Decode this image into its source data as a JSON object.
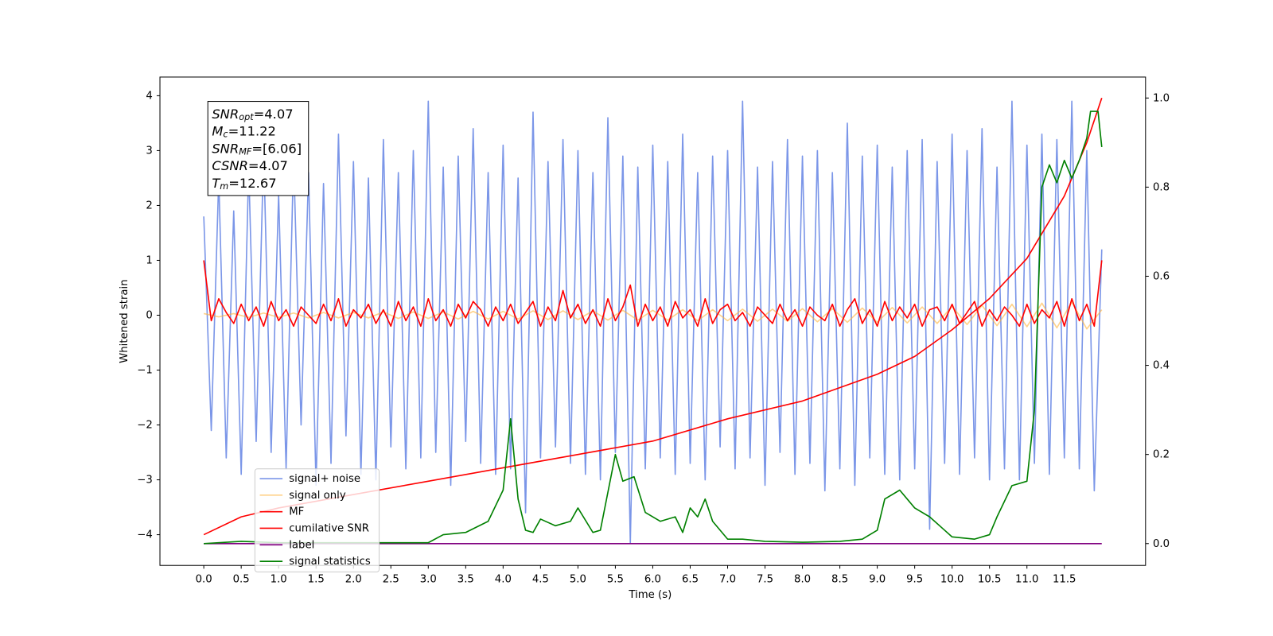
{
  "chart_data": {
    "type": "line",
    "xlabel": "Time (s)",
    "ylabel": "Whitened strain",
    "xlim": [
      -0.586,
      12.585
    ],
    "ylim": [
      -4.56,
      4.34
    ],
    "y2lim": [
      -0.049,
      1.047
    ],
    "xticks": [
      {
        "value": 0,
        "label": "0.0"
      },
      {
        "value": 0.5,
        "label": "0.5"
      },
      {
        "value": 1,
        "label": "1.0"
      },
      {
        "value": 1.5,
        "label": "1.5"
      },
      {
        "value": 2,
        "label": "2.0"
      },
      {
        "value": 2.5,
        "label": "2.5"
      },
      {
        "value": 3,
        "label": "3.0"
      },
      {
        "value": 3.5,
        "label": "3.5"
      },
      {
        "value": 4,
        "label": "4.0"
      },
      {
        "value": 4.5,
        "label": "4.5"
      },
      {
        "value": 5,
        "label": "5.0"
      },
      {
        "value": 5.5,
        "label": "5.5"
      },
      {
        "value": 6,
        "label": "6.0"
      },
      {
        "value": 6.5,
        "label": "6.5"
      },
      {
        "value": 7,
        "label": "7.0"
      },
      {
        "value": 7.5,
        "label": "7.5"
      },
      {
        "value": 8,
        "label": "8.0"
      },
      {
        "value": 8.5,
        "label": "8.5"
      },
      {
        "value": 9,
        "label": "9.0"
      },
      {
        "value": 9.5,
        "label": "9.5"
      },
      {
        "value": 10,
        "label": "10.0"
      },
      {
        "value": 10.5,
        "label": "10.5"
      },
      {
        "value": 11,
        "label": "11.0"
      },
      {
        "value": 11.5,
        "label": "11.5"
      }
    ],
    "yticks": [
      {
        "value": -4,
        "label": "−4"
      },
      {
        "value": -3,
        "label": "−3"
      },
      {
        "value": -2,
        "label": "−2"
      },
      {
        "value": -1,
        "label": "−1"
      },
      0,
      1,
      2,
      3,
      4
    ],
    "y2ticks": [
      {
        "value": 0,
        "label": "0.0"
      },
      {
        "value": 0.2,
        "label": "0.2"
      },
      {
        "value": 0.4,
        "label": "0.4"
      },
      {
        "value": 0.6,
        "label": "0.6"
      },
      {
        "value": 0.8,
        "label": "0.8"
      },
      {
        "value": 1,
        "label": "1.0"
      }
    ],
    "legend": "lower left",
    "annotations": [
      {
        "name": "SNR",
        "sub": "opt",
        "text": "=4.07"
      },
      {
        "name": "M",
        "sub": "c",
        "text": "=11.22"
      },
      {
        "name": "SNR",
        "sub": "MF",
        "text": "=[6.06]"
      },
      {
        "name": "CSNR",
        "text": "=4.07"
      },
      {
        "name": "T",
        "sub": "m",
        "text": "=12.67"
      }
    ],
    "series": [
      {
        "name": "signal+ noise",
        "color": "#7b96e8",
        "x": [
          0,
          0.1,
          0.2,
          0.3,
          0.4,
          0.5,
          0.6,
          0.7,
          0.8,
          0.9,
          1,
          1.1,
          1.2,
          1.3,
          1.4,
          1.5,
          1.6,
          1.7,
          1.8,
          1.9,
          2,
          2.1,
          2.2,
          2.3,
          2.4,
          2.5,
          2.6,
          2.7,
          2.8,
          2.9,
          3,
          3.1,
          3.2,
          3.3,
          3.4,
          3.5,
          3.6,
          3.7,
          3.8,
          3.9,
          4,
          4.1,
          4.2,
          4.3,
          4.4,
          4.5,
          4.6,
          4.7,
          4.8,
          4.9,
          5,
          5.1,
          5.2,
          5.3,
          5.4,
          5.5,
          5.6,
          5.7,
          5.8,
          5.9,
          6,
          6.1,
          6.2,
          6.3,
          6.4,
          6.5,
          6.6,
          6.7,
          6.8,
          6.9,
          7,
          7.1,
          7.2,
          7.3,
          7.4,
          7.5,
          7.6,
          7.7,
          7.8,
          7.9,
          8,
          8.1,
          8.2,
          8.3,
          8.4,
          8.5,
          8.6,
          8.7,
          8.8,
          8.9,
          9,
          9.1,
          9.2,
          9.3,
          9.4,
          9.5,
          9.6,
          9.7,
          9.8,
          9.9,
          10,
          10.1,
          10.2,
          10.3,
          10.4,
          10.5,
          10.6,
          10.7,
          10.8,
          10.9,
          11,
          11.1,
          11.2,
          11.3,
          11.4,
          11.5,
          11.6,
          11.7,
          11.8,
          11.9,
          12
        ],
        "values": [
          1.8,
          -2.1,
          2.5,
          -2.6,
          1.9,
          -2.9,
          2.7,
          -2.3,
          3.0,
          -2.5,
          2.2,
          -2.8,
          2.9,
          -2.0,
          2.6,
          -3.1,
          2.4,
          -2.7,
          3.3,
          -2.2,
          2.8,
          -2.9,
          2.5,
          -3.0,
          3.2,
          -2.4,
          2.6,
          -2.8,
          3.0,
          -2.6,
          3.9,
          -2.5,
          2.7,
          -3.1,
          2.9,
          -2.3,
          3.4,
          -2.7,
          2.6,
          -2.9,
          3.1,
          -2.8,
          2.5,
          -3.6,
          3.7,
          -2.6,
          2.8,
          -2.4,
          3.2,
          -2.7,
          3.0,
          -2.9,
          2.6,
          -3.0,
          3.6,
          -2.5,
          2.9,
          -4.15,
          2.7,
          -2.8,
          3.1,
          -2.6,
          2.8,
          -2.9,
          3.3,
          -2.7,
          2.6,
          -3.0,
          2.9,
          -2.4,
          3.0,
          -2.8,
          3.9,
          -2.6,
          2.7,
          -3.1,
          2.8,
          -2.5,
          3.2,
          -2.9,
          2.9,
          -2.7,
          3.0,
          -3.2,
          2.6,
          -2.8,
          3.5,
          -3.1,
          2.9,
          -2.6,
          3.1,
          -2.9,
          2.7,
          -3.0,
          3.0,
          -2.8,
          3.2,
          -3.9,
          2.8,
          -2.7,
          3.3,
          -2.9,
          3.0,
          -2.6,
          3.4,
          -3.0,
          2.7,
          -2.8,
          3.9,
          -3.0,
          3.1,
          -2.7,
          3.3,
          -2.9,
          3.2,
          -2.6,
          3.9,
          -2.8,
          3.0,
          -3.2,
          1.2
        ]
      },
      {
        "name": "signal only",
        "color": "#ffb43c",
        "x": [
          0,
          0.2,
          0.4,
          0.6,
          0.8,
          1,
          1.2,
          1.4,
          1.6,
          1.8,
          2,
          2.2,
          2.4,
          2.6,
          2.8,
          3,
          3.2,
          3.4,
          3.6,
          3.8,
          4,
          4.2,
          4.4,
          4.6,
          4.8,
          5,
          5.2,
          5.4,
          5.6,
          5.8,
          6,
          6.2,
          6.4,
          6.6,
          6.8,
          7,
          7.2,
          7.4,
          7.6,
          7.8,
          8,
          8.2,
          8.4,
          8.6,
          8.8,
          9,
          9.2,
          9.4,
          9.6,
          9.8,
          10,
          10.2,
          10.4,
          10.6,
          10.8,
          11,
          11.2,
          11.4,
          11.6,
          11.8,
          12
        ],
        "values": [
          0.03,
          -0.03,
          0.03,
          -0.04,
          0.04,
          -0.04,
          0.04,
          -0.05,
          0.05,
          -0.05,
          0.05,
          -0.05,
          0.06,
          -0.06,
          0.06,
          -0.06,
          0.06,
          -0.07,
          0.07,
          -0.07,
          0.07,
          -0.07,
          0.08,
          -0.08,
          0.08,
          -0.08,
          0.08,
          -0.09,
          0.09,
          -0.09,
          0.09,
          -0.09,
          0.1,
          -0.1,
          0.1,
          -0.1,
          0.11,
          -0.11,
          0.11,
          -0.11,
          0.12,
          -0.12,
          0.12,
          -0.13,
          0.13,
          -0.13,
          0.14,
          -0.14,
          0.15,
          -0.15,
          0.16,
          -0.17,
          0.18,
          -0.19,
          0.2,
          -0.21,
          0.22,
          -0.23,
          0.24,
          -0.25,
          0.1
        ]
      },
      {
        "name": "MF",
        "color": "#ff0000",
        "x": [
          0,
          0.1,
          0.2,
          0.3,
          0.4,
          0.5,
          0.6,
          0.7,
          0.8,
          0.9,
          1,
          1.1,
          1.2,
          1.3,
          1.4,
          1.5,
          1.6,
          1.7,
          1.8,
          1.9,
          2,
          2.1,
          2.2,
          2.3,
          2.4,
          2.5,
          2.6,
          2.7,
          2.8,
          2.9,
          3,
          3.1,
          3.2,
          3.3,
          3.4,
          3.5,
          3.6,
          3.7,
          3.8,
          3.9,
          4,
          4.1,
          4.2,
          4.3,
          4.4,
          4.5,
          4.6,
          4.7,
          4.8,
          4.9,
          5,
          5.1,
          5.2,
          5.3,
          5.4,
          5.5,
          5.6,
          5.7,
          5.8,
          5.9,
          6,
          6.1,
          6.2,
          6.3,
          6.4,
          6.5,
          6.6,
          6.7,
          6.8,
          6.9,
          7,
          7.1,
          7.2,
          7.3,
          7.4,
          7.5,
          7.6,
          7.7,
          7.8,
          7.9,
          8,
          8.1,
          8.2,
          8.3,
          8.4,
          8.5,
          8.6,
          8.7,
          8.8,
          8.9,
          9,
          9.1,
          9.2,
          9.3,
          9.4,
          9.5,
          9.6,
          9.7,
          9.8,
          9.9,
          10,
          10.1,
          10.2,
          10.3,
          10.4,
          10.5,
          10.6,
          10.7,
          10.8,
          10.9,
          11,
          11.1,
          11.2,
          11.3,
          11.4,
          11.5,
          11.6,
          11.7,
          11.8,
          11.9,
          12
        ],
        "values": [
          1.0,
          -0.1,
          0.3,
          0.05,
          -0.15,
          0.2,
          -0.1,
          0.15,
          -0.2,
          0.25,
          -0.1,
          0.1,
          -0.2,
          0.15,
          0.0,
          -0.15,
          0.2,
          -0.1,
          0.3,
          -0.2,
          0.1,
          -0.05,
          0.2,
          -0.15,
          0.1,
          -0.2,
          0.25,
          -0.1,
          0.15,
          -0.2,
          0.3,
          -0.1,
          0.1,
          -0.2,
          0.2,
          -0.05,
          0.25,
          0.1,
          -0.2,
          0.15,
          -0.1,
          0.2,
          -0.15,
          0.05,
          0.25,
          -0.2,
          0.15,
          -0.1,
          0.45,
          -0.05,
          0.2,
          -0.15,
          0.1,
          -0.2,
          0.3,
          -0.1,
          0.15,
          0.55,
          -0.2,
          0.2,
          -0.1,
          0.15,
          -0.2,
          0.25,
          -0.05,
          0.1,
          -0.2,
          0.3,
          -0.15,
          0.1,
          0.2,
          -0.1,
          0.05,
          -0.2,
          0.15,
          0.0,
          -0.15,
          0.2,
          -0.1,
          0.1,
          -0.2,
          0.15,
          0.0,
          -0.1,
          0.2,
          -0.2,
          0.1,
          0.3,
          -0.15,
          0.1,
          -0.2,
          0.25,
          -0.1,
          0.15,
          -0.05,
          0.2,
          -0.2,
          0.1,
          0.15,
          -0.1,
          0.2,
          -0.15,
          0.05,
          0.25,
          -0.2,
          0.1,
          -0.1,
          0.15,
          0.0,
          -0.2,
          0.2,
          -0.15,
          0.1,
          -0.05,
          0.25,
          -0.2,
          0.3,
          -0.1,
          0.2,
          -0.2,
          1.0
        ]
      },
      {
        "name": "cumilative SNR",
        "color": "#ff0000",
        "axis": "y2",
        "x": [
          0,
          0.5,
          1,
          2,
          3,
          4,
          5,
          6,
          7,
          8,
          9,
          9.5,
          10,
          10.5,
          11,
          11.5,
          11.8,
          12
        ],
        "values": [
          0.02,
          0.06,
          0.08,
          0.11,
          0.14,
          0.17,
          0.2,
          0.23,
          0.28,
          0.32,
          0.38,
          0.42,
          0.48,
          0.55,
          0.64,
          0.78,
          0.9,
          1.0
        ]
      },
      {
        "name": "label",
        "color": "#800080",
        "axis": "y2",
        "x": [
          0,
          12
        ],
        "values": [
          0,
          0
        ]
      },
      {
        "name": "signal statistics",
        "color": "#008000",
        "axis": "y2",
        "x": [
          0,
          0.5,
          1,
          2,
          3,
          3.2,
          3.5,
          3.8,
          4,
          4.1,
          4.2,
          4.3,
          4.4,
          4.5,
          4.7,
          4.9,
          5,
          5.2,
          5.3,
          5.5,
          5.6,
          5.75,
          5.9,
          6.1,
          6.3,
          6.4,
          6.5,
          6.6,
          6.7,
          6.8,
          7,
          7.2,
          7.5,
          8,
          8.5,
          8.8,
          9,
          9.1,
          9.3,
          9.5,
          9.7,
          9.9,
          10,
          10.3,
          10.5,
          10.6,
          10.8,
          11,
          11.1,
          11.2,
          11.3,
          11.4,
          11.5,
          11.6,
          11.7,
          11.8,
          11.85,
          11.95,
          12
        ],
        "values": [
          0,
          0.005,
          0.002,
          0.002,
          0.002,
          0.02,
          0.025,
          0.05,
          0.12,
          0.28,
          0.1,
          0.03,
          0.025,
          0.055,
          0.04,
          0.05,
          0.08,
          0.025,
          0.03,
          0.2,
          0.14,
          0.15,
          0.07,
          0.05,
          0.06,
          0.025,
          0.08,
          0.06,
          0.1,
          0.05,
          0.01,
          0.01,
          0.005,
          0.003,
          0.005,
          0.01,
          0.03,
          0.1,
          0.12,
          0.08,
          0.06,
          0.03,
          0.015,
          0.01,
          0.02,
          0.06,
          0.13,
          0.14,
          0.3,
          0.8,
          0.85,
          0.81,
          0.86,
          0.82,
          0.86,
          0.91,
          0.97,
          0.97,
          0.89
        ]
      }
    ]
  }
}
